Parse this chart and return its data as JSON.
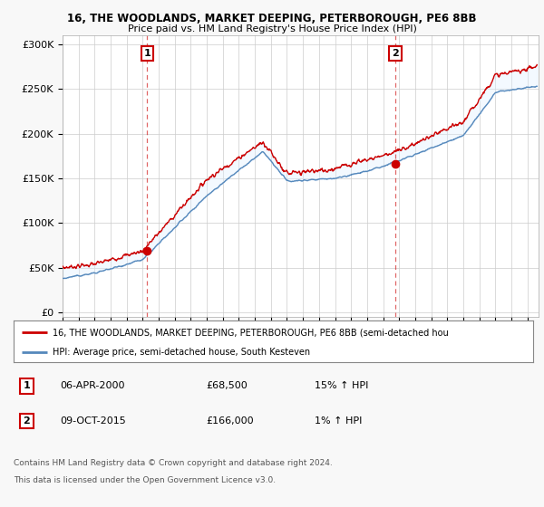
{
  "title1": "16, THE WOODLANDS, MARKET DEEPING, PETERBOROUGH, PE6 8BB",
  "title2": "Price paid vs. HM Land Registry's House Price Index (HPI)",
  "ylabel_ticks": [
    "£0",
    "£50K",
    "£100K",
    "£150K",
    "£200K",
    "£250K",
    "£300K"
  ],
  "ytick_values": [
    0,
    50000,
    100000,
    150000,
    200000,
    250000,
    300000
  ],
  "ylim": [
    -5000,
    310000
  ],
  "xlim_start": 1995.0,
  "xlim_end": 2024.7,
  "xticks": [
    1995,
    1996,
    1997,
    1998,
    1999,
    2000,
    2001,
    2002,
    2003,
    2004,
    2005,
    2006,
    2007,
    2008,
    2009,
    2010,
    2011,
    2012,
    2013,
    2014,
    2015,
    2016,
    2017,
    2018,
    2019,
    2020,
    2021,
    2022,
    2023,
    2024
  ],
  "line1_color": "#cc0000",
  "line2_color": "#5588bb",
  "fill_color": "#ddeeff",
  "marker1_date": 2000.27,
  "marker1_value": 68500,
  "marker2_date": 2015.77,
  "marker2_value": 166000,
  "vline1_x": 2000.27,
  "vline2_x": 2015.77,
  "legend_line1": "16, THE WOODLANDS, MARKET DEEPING, PETERBOROUGH, PE6 8BB (semi-detached hou",
  "legend_line2": "HPI: Average price, semi-detached house, South Kesteven",
  "table_row1": [
    "1",
    "06-APR-2000",
    "£68,500",
    "15% ↑ HPI"
  ],
  "table_row2": [
    "2",
    "09-OCT-2015",
    "£166,000",
    "1% ↑ HPI"
  ],
  "footer1": "Contains HM Land Registry data © Crown copyright and database right 2024.",
  "footer2": "This data is licensed under the Open Government Licence v3.0.",
  "bg_color": "#f8f8f8",
  "plot_bg_color": "#ffffff",
  "grid_color": "#cccccc"
}
